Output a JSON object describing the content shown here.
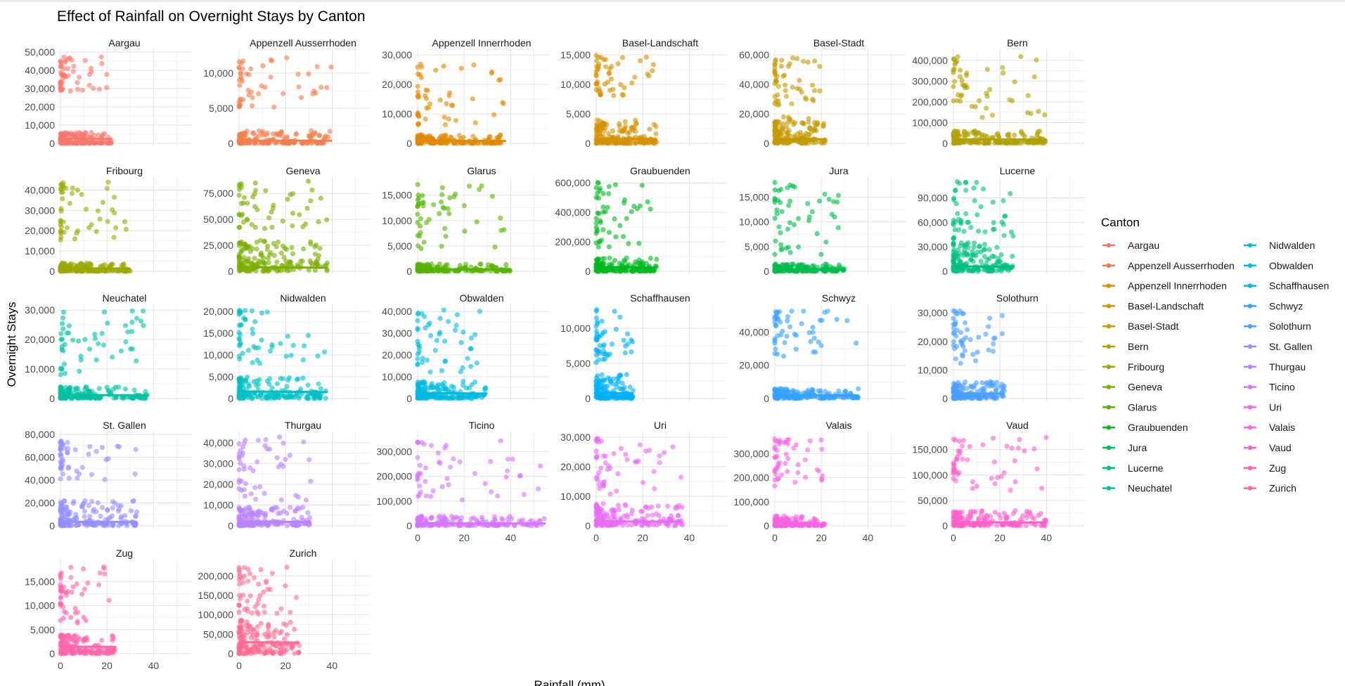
{
  "chart_data": {
    "type": "scatter",
    "title": "Effect of Rainfall on Overnight Stays by Canton",
    "xlabel": "Rainfall (mm)",
    "ylabel": "Overnight Stays",
    "facet_layout": "6 columns, 5 rows, free y scales, shared x scale",
    "xlim": [
      0,
      55
    ],
    "x_ticks": [
      0,
      20,
      40
    ],
    "grid": true,
    "trend_line": "linear fit per canton",
    "legend": {
      "title": "Canton",
      "placement": "right",
      "columns": 2
    },
    "panels": [
      {
        "name": "Aargau",
        "color": "#F8766D",
        "ylim": [
          0,
          50000
        ],
        "y_ticks": [
          0,
          10000,
          20000,
          30000,
          40000,
          50000
        ],
        "y_tick_labels": [
          "0",
          "10,000",
          "20,000",
          "30,000",
          "40,000",
          "50,000"
        ],
        "max_rain": 22,
        "clusters": [
          [
            0,
            6000
          ],
          [
            0,
            500
          ],
          [
            28000,
            48000
          ]
        ],
        "trend": [
          0,
          2800,
          22,
          2400
        ]
      },
      {
        "name": "Appenzell Ausserrhoden",
        "color": "#F17E4F",
        "ylim": [
          0,
          13000
        ],
        "y_ticks": [
          0,
          5000,
          10000
        ],
        "y_tick_labels": [
          "0",
          "5,000",
          "10,000"
        ],
        "max_rain": 40,
        "clusters": [
          [
            0,
            1800
          ],
          [
            0,
            200
          ],
          [
            5000,
            12500
          ]
        ],
        "trend": [
          0,
          400,
          40,
          380
        ]
      },
      {
        "name": "Appenzell Innerrhoden",
        "color": "#E38900",
        "ylim": [
          0,
          31000
        ],
        "y_ticks": [
          0,
          10000,
          20000,
          30000
        ],
        "y_tick_labels": [
          "0",
          "10,000",
          "20,000",
          "30,000"
        ],
        "max_rain": 38,
        "clusters": [
          [
            0,
            3000
          ],
          [
            0,
            300
          ],
          [
            6000,
            27000
          ]
        ],
        "trend": [
          0,
          900,
          38,
          800
        ]
      },
      {
        "name": "Basel-Landschaft",
        "color": "#D49100",
        "ylim": [
          0,
          15500
        ],
        "y_ticks": [
          0,
          5000,
          10000,
          15000
        ],
        "y_tick_labels": [
          "0",
          "5,000",
          "10,000",
          "15,000"
        ],
        "max_rain": 26,
        "clusters": [
          [
            0,
            4000
          ],
          [
            0,
            400
          ],
          [
            8000,
            15000
          ]
        ],
        "trend": [
          0,
          800,
          26,
          700
        ]
      },
      {
        "name": "Basel-Stadt",
        "color": "#C49A00",
        "ylim": [
          0,
          62000
        ],
        "y_ticks": [
          0,
          20000,
          40000,
          60000
        ],
        "y_tick_labels": [
          "0",
          "20,000",
          "40,000",
          "60,000"
        ],
        "max_rain": 22,
        "clusters": [
          [
            0,
            18000
          ],
          [
            0,
            3000
          ],
          [
            25000,
            58000
          ]
        ],
        "trend": [
          0,
          3000,
          22,
          2800
        ]
      },
      {
        "name": "Bern",
        "color": "#B0A000",
        "ylim": [
          0,
          440000
        ],
        "y_ticks": [
          0,
          100000,
          200000,
          300000,
          400000
        ],
        "y_tick_labels": [
          "0",
          "100,000",
          "200,000",
          "300,000",
          "400,000"
        ],
        "max_rain": 40,
        "clusters": [
          [
            0,
            60000
          ],
          [
            0,
            10000
          ],
          [
            120000,
            430000
          ]
        ],
        "trend": [
          0,
          20000,
          40,
          18000
        ]
      },
      {
        "name": "Fribourg",
        "color": "#99A800",
        "ylim": [
          0,
          45000
        ],
        "y_ticks": [
          0,
          10000,
          20000,
          30000,
          40000
        ],
        "y_tick_labels": [
          "0",
          "10,000",
          "20,000",
          "30,000",
          "40,000"
        ],
        "max_rain": 30,
        "clusters": [
          [
            0,
            4000
          ],
          [
            0,
            500
          ],
          [
            15000,
            44000
          ]
        ],
        "trend": [
          0,
          1500,
          30,
          1400
        ]
      },
      {
        "name": "Geneva",
        "color": "#7CAE00",
        "ylim": [
          0,
          88000
        ],
        "y_ticks": [
          0,
          25000,
          50000,
          75000
        ],
        "y_tick_labels": [
          "0",
          "25,000",
          "50,000",
          "75,000"
        ],
        "max_rain": 38,
        "clusters": [
          [
            0,
            30000
          ],
          [
            0,
            10000
          ],
          [
            40000,
            87000
          ]
        ],
        "trend": [
          0,
          4000,
          38,
          3500
        ]
      },
      {
        "name": "Glarus",
        "color": "#55B200",
        "ylim": [
          0,
          18000
        ],
        "y_ticks": [
          0,
          5000,
          10000,
          15000
        ],
        "y_tick_labels": [
          "0",
          "5,000",
          "10,000",
          "15,000"
        ],
        "max_rain": 40,
        "clusters": [
          [
            0,
            1500
          ],
          [
            0,
            300
          ],
          [
            4000,
            17500
          ]
        ],
        "trend": [
          0,
          400,
          40,
          350
        ]
      },
      {
        "name": "Graubuenden",
        "color": "#00B81F",
        "ylim": [
          0,
          620000
        ],
        "y_ticks": [
          0,
          200000,
          400000,
          600000
        ],
        "y_tick_labels": [
          "0",
          "200,000",
          "400,000",
          "600,000"
        ],
        "max_rain": 26,
        "clusters": [
          [
            0,
            90000
          ],
          [
            0,
            15000
          ],
          [
            150000,
            610000
          ]
        ],
        "trend": [
          0,
          30000,
          26,
          25000
        ]
      },
      {
        "name": "Jura",
        "color": "#00BB4E",
        "ylim": [
          0,
          18500
        ],
        "y_ticks": [
          0,
          5000,
          10000,
          15000
        ],
        "y_tick_labels": [
          "0",
          "5,000",
          "10,000",
          "15,000"
        ],
        "max_rain": 30,
        "clusters": [
          [
            0,
            1500
          ],
          [
            0,
            300
          ],
          [
            3000,
            18000
          ]
        ],
        "trend": [
          0,
          400,
          30,
          350
        ]
      },
      {
        "name": "Lucerne",
        "color": "#00BF7D",
        "ylim": [
          0,
          112000
        ],
        "y_ticks": [
          0,
          30000,
          60000,
          90000
        ],
        "y_tick_labels": [
          "0",
          "30,000",
          "60,000",
          "90,000"
        ],
        "max_rain": 26,
        "clusters": [
          [
            0,
            35000
          ],
          [
            0,
            8000
          ],
          [
            40000,
            110000
          ]
        ],
        "trend": [
          0,
          6000,
          26,
          5500
        ]
      },
      {
        "name": "Neuchatel",
        "color": "#00C1A3",
        "ylim": [
          0,
          31000
        ],
        "y_ticks": [
          0,
          10000,
          20000,
          30000
        ],
        "y_tick_labels": [
          "0",
          "10,000",
          "20,000",
          "30,000"
        ],
        "max_rain": 38,
        "clusters": [
          [
            0,
            4000
          ],
          [
            0,
            800
          ],
          [
            8000,
            30000
          ]
        ],
        "trend": [
          0,
          1200,
          38,
          1100
        ]
      },
      {
        "name": "Nidwalden",
        "color": "#00BFC4",
        "ylim": [
          0,
          21000
        ],
        "y_ticks": [
          0,
          5000,
          10000,
          15000,
          20000
        ],
        "y_tick_labels": [
          "0",
          "5,000",
          "10,000",
          "15,000",
          "20,000"
        ],
        "max_rain": 38,
        "clusters": [
          [
            0,
            5000
          ],
          [
            0,
            1500
          ],
          [
            8000,
            20500
          ]
        ],
        "trend": [
          0,
          1600,
          38,
          1500
        ]
      },
      {
        "name": "Obwalden",
        "color": "#00BAE0",
        "ylim": [
          0,
          42000
        ],
        "y_ticks": [
          0,
          10000,
          20000,
          30000,
          40000
        ],
        "y_tick_labels": [
          "0",
          "10,000",
          "20,000",
          "30,000",
          "40,000"
        ],
        "max_rain": 30,
        "clusters": [
          [
            0,
            8000
          ],
          [
            0,
            2000
          ],
          [
            12000,
            41000
          ]
        ],
        "trend": [
          0,
          2500,
          30,
          2300
        ]
      },
      {
        "name": "Schaffhausen",
        "color": "#00B0F6",
        "ylim": [
          0,
          13000
        ],
        "y_ticks": [
          0,
          5000,
          10000
        ],
        "y_tick_labels": [
          "0",
          "5,000",
          "10,000"
        ],
        "max_rain": 16,
        "clusters": [
          [
            0,
            3500
          ],
          [
            0,
            700
          ],
          [
            5000,
            12800
          ]
        ],
        "trend": [
          0,
          800,
          16,
          750
        ]
      },
      {
        "name": "Schwyz",
        "color": "#35A2FF",
        "ylim": [
          0,
          55000
        ],
        "y_ticks": [
          0,
          20000,
          40000
        ],
        "y_tick_labels": [
          "0",
          "20,000",
          "40,000"
        ],
        "max_rain": 36,
        "clusters": [
          [
            0,
            6000
          ],
          [
            0,
            1500
          ],
          [
            25000,
            53000
          ]
        ],
        "trend": [
          0,
          2000,
          36,
          1900
        ]
      },
      {
        "name": "Solothurn",
        "color": "#4A9FFF",
        "ylim": [
          0,
          32000
        ],
        "y_ticks": [
          0,
          10000,
          20000,
          30000
        ],
        "y_tick_labels": [
          "0",
          "10,000",
          "20,000",
          "30,000"
        ],
        "max_rain": 22,
        "clusters": [
          [
            0,
            6000
          ],
          [
            0,
            1500
          ],
          [
            12000,
            31000
          ]
        ],
        "trend": [
          0,
          1800,
          22,
          1700
        ]
      },
      {
        "name": "St. Gallen",
        "color": "#9590FF",
        "ylim": [
          0,
          80000
        ],
        "y_ticks": [
          0,
          20000,
          40000,
          60000,
          80000
        ],
        "y_tick_labels": [
          "0",
          "20,000",
          "40,000",
          "60,000",
          "80,000"
        ],
        "max_rain": 33,
        "clusters": [
          [
            0,
            22000
          ],
          [
            0,
            4000
          ],
          [
            40000,
            77000
          ]
        ],
        "trend": [
          0,
          3500,
          33,
          3200
        ]
      },
      {
        "name": "Thurgau",
        "color": "#B983FF",
        "ylim": [
          0,
          44000
        ],
        "y_ticks": [
          0,
          10000,
          20000,
          30000,
          40000
        ],
        "y_tick_labels": [
          "0",
          "10,000",
          "20,000",
          "30,000",
          "40,000"
        ],
        "max_rain": 31,
        "clusters": [
          [
            0,
            9000
          ],
          [
            0,
            2000
          ],
          [
            12000,
            43000
          ]
        ],
        "trend": [
          0,
          2000,
          31,
          1800
        ]
      },
      {
        "name": "Ticino",
        "color": "#D575FE",
        "ylim": [
          0,
          370000
        ],
        "y_ticks": [
          0,
          100000,
          200000,
          300000
        ],
        "y_tick_labels": [
          "0",
          "100,000",
          "200,000",
          "300,000"
        ],
        "max_rain": 55,
        "clusters": [
          [
            0,
            40000
          ],
          [
            0,
            8000
          ],
          [
            100000,
            360000
          ]
        ],
        "trend": [
          0,
          10000,
          55,
          9000
        ]
      },
      {
        "name": "Uri",
        "color": "#E76BF3",
        "ylim": [
          0,
          31000
        ],
        "y_ticks": [
          0,
          10000,
          20000,
          30000
        ],
        "y_tick_labels": [
          "0",
          "10,000",
          "20,000",
          "30,000"
        ],
        "max_rain": 37,
        "clusters": [
          [
            0,
            8000
          ],
          [
            0,
            2000
          ],
          [
            10000,
            30000
          ]
        ],
        "trend": [
          0,
          1500,
          37,
          1400
        ]
      },
      {
        "name": "Valais",
        "color": "#F564E3",
        "ylim": [
          0,
          380000
        ],
        "y_ticks": [
          0,
          100000,
          200000,
          300000
        ],
        "y_tick_labels": [
          "0",
          "100,000",
          "200,000",
          "300,000"
        ],
        "max_rain": 22,
        "clusters": [
          [
            0,
            40000
          ],
          [
            0,
            8000
          ],
          [
            150000,
            370000
          ]
        ],
        "trend": [
          0,
          10000,
          22,
          9000
        ]
      },
      {
        "name": "Vaud",
        "color": "#FF61C9",
        "ylim": [
          0,
          180000
        ],
        "y_ticks": [
          0,
          50000,
          100000,
          150000
        ],
        "y_tick_labels": [
          "0",
          "50,000",
          "100,000",
          "150,000"
        ],
        "max_rain": 40,
        "clusters": [
          [
            0,
            30000
          ],
          [
            0,
            6000
          ],
          [
            70000,
            175000
          ]
        ],
        "trend": [
          0,
          7000,
          40,
          6500
        ]
      },
      {
        "name": "Zug",
        "color": "#FF65AC",
        "ylim": [
          0,
          19000
        ],
        "y_ticks": [
          0,
          5000,
          10000,
          15000
        ],
        "y_tick_labels": [
          "0",
          "5,000",
          "10,000",
          "15,000"
        ],
        "max_rain": 24,
        "clusters": [
          [
            0,
            4000
          ],
          [
            0,
            1000
          ],
          [
            6000,
            18500
          ]
        ],
        "trend": [
          0,
          1500,
          24,
          1400
        ]
      },
      {
        "name": "Zurich",
        "color": "#FF6C91",
        "ylim": [
          0,
          235000
        ],
        "y_ticks": [
          0,
          50000,
          100000,
          150000,
          200000
        ],
        "y_tick_labels": [
          "0",
          "50,000",
          "100,000",
          "150,000",
          "200,000"
        ],
        "max_rain": 26,
        "clusters": [
          [
            0,
            90000
          ],
          [
            0,
            30000
          ],
          [
            100000,
            230000
          ]
        ],
        "trend": [
          0,
          30000,
          26,
          28000
        ]
      }
    ]
  }
}
